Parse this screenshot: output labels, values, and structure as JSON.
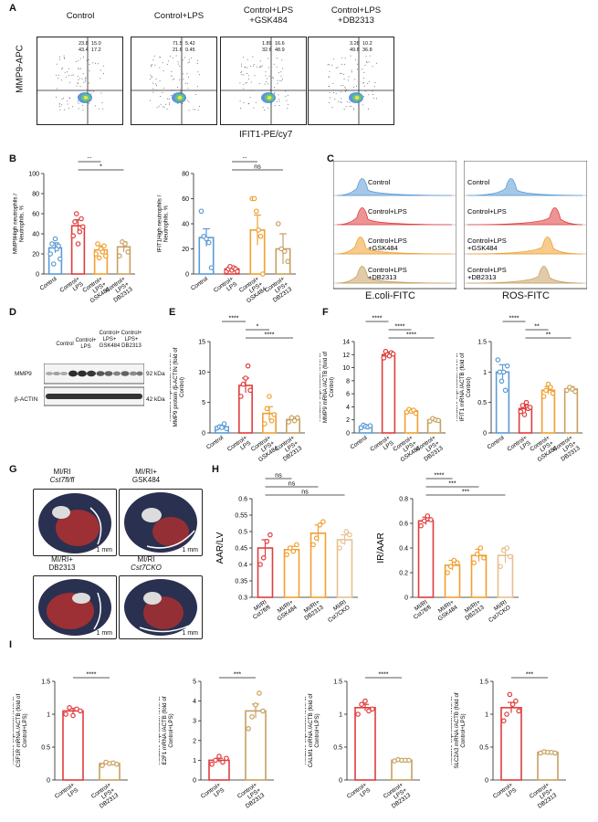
{
  "panels": {
    "A": "A",
    "B": "B",
    "C": "C",
    "D": "D",
    "E": "E",
    "F": "F",
    "G": "G",
    "H": "H",
    "I": "I"
  },
  "facs": {
    "ylabel": "MMP9-APC",
    "xlabel": "IFIT1-PE/cy7",
    "plots": [
      {
        "title": "Control",
        "q_ul": "23.8",
        "q_ur": "15.0",
        "q_ll": "43.4",
        "q_lr": "17.2"
      },
      {
        "title": "Control+LPS",
        "q_ul": "71.5",
        "q_ur": "5.42",
        "q_ll": "21.6",
        "q_lr": "0.45"
      },
      {
        "title": "Control+LPS +GSK484",
        "q_ul": "1.89",
        "q_ur": "16.6",
        "q_ll": "32.6",
        "q_lr": "48.9"
      },
      {
        "title": "Control+LPS +DB2313",
        "q_ul": "3.28",
        "q_ur": "10.2",
        "q_ll": "49.8",
        "q_lr": "36.8"
      }
    ]
  },
  "hist": {
    "left_xlabel": "E.coli-FITC",
    "right_xlabel": "ROS-FITC",
    "tracks": [
      "Control",
      "Control+LPS",
      "Control+LPS +GSK484",
      "Control+LPS +DB2313"
    ]
  },
  "blot": {
    "lanes": [
      "Control",
      "Control+ LPS",
      "Control+ LPS+ GSK484",
      "Control+ LPS+ DB2313"
    ],
    "rows": [
      {
        "name": "MMP9",
        "size": "92 kDa"
      },
      {
        "name": "β-ACTIN",
        "size": "42 kDa"
      }
    ]
  },
  "hearts": [
    {
      "title": "MI/RI",
      "sub": "Cst7fl/fl",
      "scale": "1 mm"
    },
    {
      "title": "MI/RI+",
      "sub": "GSK484",
      "scale": "1 mm"
    },
    {
      "title": "MI/RI+",
      "sub": "DB2313",
      "scale": "1 mm"
    },
    {
      "title": "MI/RI",
      "sub": "Cst7CKO",
      "scale": "1 mm"
    }
  ],
  "colors": {
    "control": "#5B9BD5",
    "lps": "#E03C3C",
    "gsk": "#F0A030",
    "db": "#C8A060",
    "cko": "#E8C090"
  },
  "chart_data": [
    {
      "id": "B1",
      "type": "bar",
      "ylabel": "MMP9High neutrophils / Neutrophils, %",
      "ylim": [
        0,
        100
      ],
      "yticks": [
        0,
        20,
        40,
        60,
        80,
        100
      ],
      "categories": [
        "Control",
        "Control+ LPS",
        "Control+ LPS+ GSK484",
        "Control+ LPS+ DB2313"
      ],
      "values": [
        26,
        48,
        24,
        27
      ],
      "errors": [
        5,
        6,
        4,
        5
      ],
      "points": [
        [
          20,
          30,
          10,
          35,
          25,
          28,
          15
        ],
        [
          38,
          52,
          60,
          30,
          42,
          55,
          47
        ],
        [
          20,
          30,
          16,
          25,
          22,
          28,
          18
        ],
        [
          18,
          32,
          30,
          22
        ]
      ],
      "sig": [
        [
          "*",
          0,
          1
        ],
        [
          "**",
          1,
          2
        ],
        [
          "*",
          1,
          3
        ]
      ]
    },
    {
      "id": "B2",
      "type": "bar",
      "ylabel": "IFIT1High neutrophils / Neutrophils, %",
      "ylim": [
        0,
        80
      ],
      "yticks": [
        0,
        20,
        40,
        60,
        80
      ],
      "categories": [
        "Control",
        "Control+ LPS",
        "Control+ LPS+ GSK484",
        "Control+ LPS+ DB2313"
      ],
      "values": [
        29,
        4,
        35,
        20
      ],
      "errors": [
        7,
        2,
        12,
        12
      ],
      "points": [
        [
          50,
          30,
          28,
          25,
          5
        ],
        [
          2,
          4,
          6,
          3,
          5,
          4,
          2
        ],
        [
          60,
          60,
          50,
          35,
          30,
          0
        ],
        [
          40,
          20,
          18,
          10
        ]
      ],
      "sig": [
        [
          "*",
          0,
          1
        ],
        [
          "**",
          1,
          2
        ],
        [
          "ns",
          1,
          3
        ]
      ]
    },
    {
      "id": "E",
      "type": "bar",
      "ylabel": "Relative expression level of MMP9 protein /β-ACTIN (fold of Control)",
      "ylim": [
        0,
        15
      ],
      "yticks": [
        0,
        5,
        10,
        15
      ],
      "categories": [
        "Control",
        "Control+ LPS",
        "Control+ LPS+ GSK484",
        "Control+ LPS+ DB2313"
      ],
      "values": [
        1,
        7.8,
        3.2,
        2.2
      ],
      "errors": [
        0.3,
        1.2,
        1.1,
        0.4
      ],
      "points": [
        [
          0.8,
          1.0,
          0.9,
          1.5,
          0.7
        ],
        [
          6,
          8,
          9,
          11,
          7
        ],
        [
          1.5,
          4,
          6,
          2,
          3
        ],
        [
          1.8,
          2.5,
          2.0,
          2.5
        ]
      ],
      "sig": [
        [
          "****",
          0,
          1
        ],
        [
          "*",
          1,
          2
        ],
        [
          "****",
          1,
          3
        ]
      ]
    },
    {
      "id": "F1",
      "type": "bar",
      "ylabel": "Relative expression level of MMP9 mRNA /ACTB (fold of Control)",
      "ylim": [
        0,
        14
      ],
      "yticks": [
        0,
        2,
        4,
        6,
        8,
        10,
        12,
        14
      ],
      "categories": [
        "Control",
        "Control+ LPS",
        "Control+ LPS+ GSK484",
        "Control+ LPS+ DB2313"
      ],
      "values": [
        1,
        12,
        3.4,
        2
      ],
      "errors": [
        0.2,
        0.4,
        0.3,
        0.2
      ],
      "points": [
        [
          0.8,
          1.2,
          1.0,
          0.9,
          1.1
        ],
        [
          11.5,
          12.5,
          12,
          11.8,
          12.3,
          12.1
        ],
        [
          3.2,
          3.6,
          3.3,
          3.5,
          3.0
        ],
        [
          1.8,
          2.2,
          2.0,
          1.9
        ]
      ],
      "sig": [
        [
          "****",
          0,
          1
        ],
        [
          "****",
          1,
          2
        ],
        [
          "****",
          1,
          3
        ]
      ]
    },
    {
      "id": "F2",
      "type": "bar",
      "ylabel": "Relative expression level of IFIT1 mRNA /ACTB (fold of Control)",
      "ylim": [
        0,
        1.5
      ],
      "yticks": [
        0,
        0.5,
        1.0,
        1.5
      ],
      "categories": [
        "Control",
        "Control+ LPS",
        "Control+ LPS+ GSK484",
        "Control+ LPS+ DB2313"
      ],
      "values": [
        1.0,
        0.4,
        0.7,
        0.72
      ],
      "errors": [
        0.12,
        0.06,
        0.06,
        0.04
      ],
      "points": [
        [
          1.2,
          1.0,
          0.85,
          1.0,
          0.7,
          1.1
        ],
        [
          0.35,
          0.45,
          0.3,
          0.5,
          0.4,
          0.42
        ],
        [
          0.6,
          0.7,
          0.8,
          0.75,
          0.65
        ],
        [
          0.7,
          0.75,
          0.72,
          0.68
        ]
      ],
      "sig": [
        [
          "****",
          0,
          1
        ],
        [
          "**",
          1,
          2
        ],
        [
          "**",
          1,
          3
        ]
      ]
    },
    {
      "id": "H1",
      "type": "bar",
      "ylabel": "AAR/LV",
      "ylim": [
        0.3,
        0.6
      ],
      "yticks": [
        0.3,
        0.35,
        0.4,
        0.45,
        0.5,
        0.55,
        0.6
      ],
      "categories": [
        "MI/RI Cst7fl/fl",
        "MI/RI+ GSK484",
        "MI/RI+ DB2313",
        "MI/RI Cst7CKO"
      ],
      "values": [
        0.45,
        0.445,
        0.495,
        0.475
      ],
      "errors": [
        0.025,
        0.01,
        0.025,
        0.015
      ],
      "points": [
        [
          0.4,
          0.42,
          0.47,
          0.49
        ],
        [
          0.43,
          0.45,
          0.44,
          0.46
        ],
        [
          0.46,
          0.48,
          0.52,
          0.53
        ],
        [
          0.45,
          0.47,
          0.5,
          0.49
        ]
      ],
      "sig": [
        [
          "ns",
          0,
          1
        ],
        [
          "ns",
          0,
          2
        ],
        [
          "ns",
          0,
          3
        ]
      ]
    },
    {
      "id": "H2",
      "type": "bar",
      "ylabel": "IR/AAR",
      "ylim": [
        0,
        0.8
      ],
      "yticks": [
        0,
        0.2,
        0.4,
        0.6,
        0.8
      ],
      "categories": [
        "MI/RI Cst7fl/fl",
        "MI/RI+ GSK484",
        "MI/RI+ DB2313",
        "MI/RI Cst7CKO"
      ],
      "values": [
        0.62,
        0.26,
        0.34,
        0.34
      ],
      "errors": [
        0.03,
        0.04,
        0.05,
        0.06
      ],
      "points": [
        [
          0.58,
          0.62,
          0.66,
          0.63
        ],
        [
          0.2,
          0.25,
          0.3,
          0.28
        ],
        [
          0.28,
          0.35,
          0.4,
          0.32
        ],
        [
          0.25,
          0.38,
          0.4,
          0.33
        ]
      ],
      "sig": [
        [
          "****",
          0,
          1
        ],
        [
          "***",
          0,
          2
        ],
        [
          "***",
          0,
          3
        ]
      ]
    },
    {
      "id": "I1",
      "type": "bar",
      "ylabel": "Relative expression level of CSF1R mRNA /ACTB (fold of Control+LPS)",
      "ylim": [
        0,
        1.5
      ],
      "yticks": [
        0,
        0.5,
        1.0,
        1.5
      ],
      "categories": [
        "Control+ LPS",
        "Control+ LPS+ DB2313"
      ],
      "values": [
        1.05,
        0.25
      ],
      "errors": [
        0.04,
        0.02
      ],
      "points": [
        [
          1.0,
          1.1,
          0.98,
          1.08,
          1.05
        ],
        [
          0.22,
          0.27,
          0.25,
          0.26,
          0.24
        ]
      ],
      "sig": [
        [
          "****",
          0,
          1
        ]
      ]
    },
    {
      "id": "I2",
      "type": "bar",
      "ylabel": "Relative expression level of E2F1 mRNA /ACTB (fold of Control+LPS)",
      "ylim": [
        0,
        5
      ],
      "yticks": [
        0,
        1,
        2,
        3,
        4,
        5
      ],
      "categories": [
        "Control+ LPS",
        "Control+ LPS+ DB2313"
      ],
      "values": [
        1.0,
        3.5
      ],
      "errors": [
        0.1,
        0.35
      ],
      "points": [
        [
          0.8,
          1.0,
          1.2,
          0.9,
          1.1
        ],
        [
          2.6,
          3.2,
          3.8,
          4.4,
          3.5
        ]
      ],
      "sig": [
        [
          "***",
          0,
          1
        ]
      ]
    },
    {
      "id": "I3",
      "type": "bar",
      "ylabel": "Relative expression level of CALM1 mRNA /ACTB (fold of Control+LPS)",
      "ylim": [
        0,
        1.5
      ],
      "yticks": [
        0,
        0.5,
        1.0,
        1.5
      ],
      "categories": [
        "Control+ LPS",
        "Control+ LPS+ DB2313"
      ],
      "values": [
        1.1,
        0.3
      ],
      "errors": [
        0.05,
        0.01
      ],
      "points": [
        [
          1.0,
          1.15,
          1.2,
          1.05,
          1.08
        ],
        [
          0.29,
          0.31,
          0.3,
          0.3,
          0.3
        ]
      ],
      "sig": [
        [
          "****",
          0,
          1
        ]
      ]
    },
    {
      "id": "I4",
      "type": "bar",
      "ylabel": "Relative expression level of SLC2A3 mRNA /ACTB (fold of Control+LPS)",
      "ylim": [
        0,
        1.5
      ],
      "yticks": [
        0,
        0.5,
        1.0,
        1.5
      ],
      "categories": [
        "Control+ LPS",
        "Control+ LPS+ DB2313"
      ],
      "values": [
        1.1,
        0.42
      ],
      "errors": [
        0.08,
        0.01
      ],
      "points": [
        [
          0.9,
          1.0,
          1.3,
          1.15,
          1.2,
          1.05
        ],
        [
          0.41,
          0.43,
          0.42,
          0.42,
          0.41
        ]
      ],
      "sig": [
        [
          "***",
          0,
          1
        ]
      ]
    }
  ]
}
